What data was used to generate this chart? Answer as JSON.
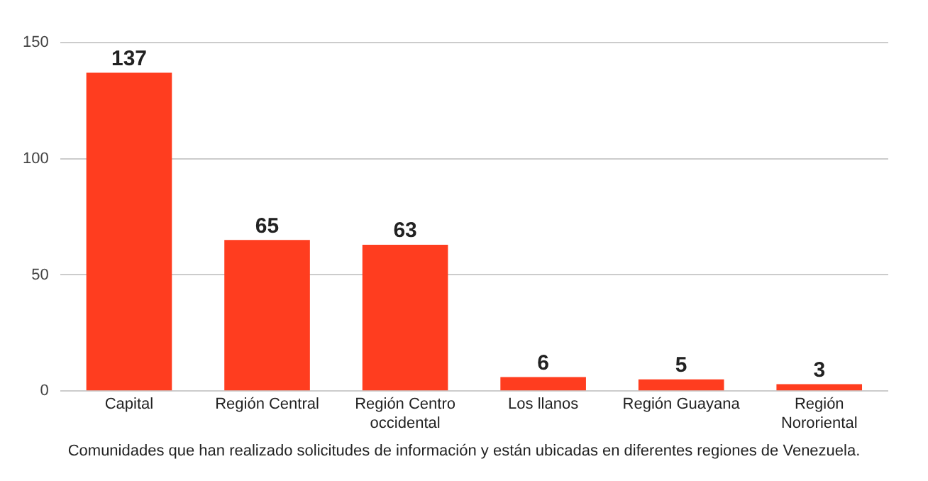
{
  "chart_data": {
    "type": "bar",
    "categories": [
      "Capital",
      "Región Central",
      "Región Centro occidental",
      "Los llanos",
      "Región Guayana",
      "Región Nororiental"
    ],
    "values": [
      137,
      65,
      63,
      6,
      5,
      3
    ],
    "color": "#ff3d1f",
    "ylim": [
      0,
      150
    ],
    "yticks": [
      0,
      50,
      100,
      150
    ],
    "grid": "y",
    "data_labels": true,
    "annotations": [
      "Comunidades que han realizado solicitudes de información y están ubicadas en diferentes regiones de Venezuela."
    ]
  }
}
